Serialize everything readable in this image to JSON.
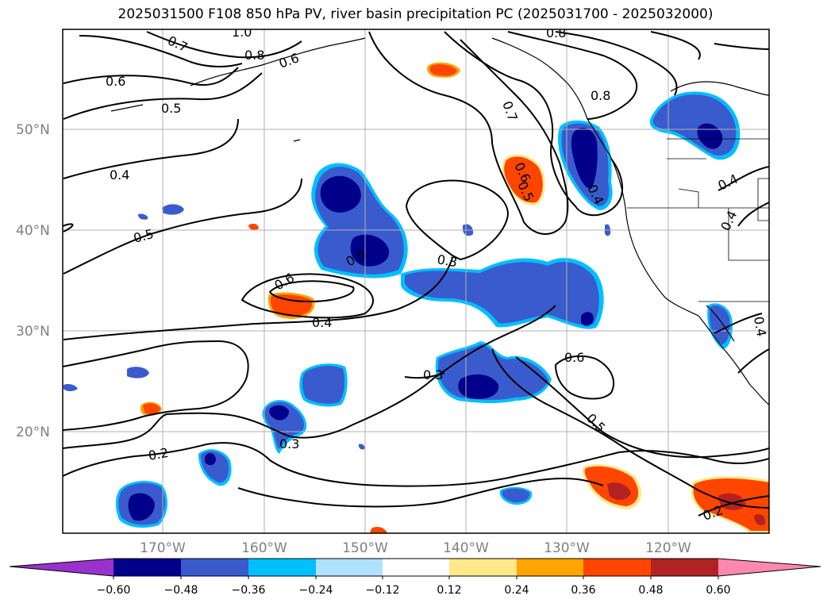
{
  "title": "2025031500 F108 850 hPa PV, river basin precipitation PC (2025031700 - 2025032000)",
  "axes": {
    "lat_labels": [
      "50°N",
      "40°N",
      "30°N",
      "20°N"
    ],
    "lon_labels": [
      "170°W",
      "160°W",
      "150°W",
      "140°W",
      "130°W",
      "120°W"
    ]
  },
  "contour_labels": [
    "1.0",
    "0.7",
    "0.8",
    "0.6",
    "0.6",
    "0.5",
    "0.4",
    "0.5",
    "0.7",
    "0.8",
    "0.8",
    "0.6",
    "0.5",
    "0.4",
    "0.3",
    "0.6",
    "0.4",
    "0.5",
    "0.4",
    "0.3",
    "0.6",
    "0.5",
    "0.3",
    "0.2",
    "0.2",
    "0.4",
    "0.4"
  ],
  "colorbar": {
    "ticks": [
      "−0.60",
      "−0.48",
      "−0.36",
      "−0.24",
      "−0.12",
      "0.12",
      "0.24",
      "0.36",
      "0.48",
      "0.60"
    ],
    "colors": [
      "#9932cc",
      "#00008b",
      "#3a5bcd",
      "#00bfff",
      "#b0e2ff",
      "#ffffff",
      "#ffe98a",
      "#ffa500",
      "#ff4500",
      "#b22222",
      "#ff88b0"
    ]
  }
}
